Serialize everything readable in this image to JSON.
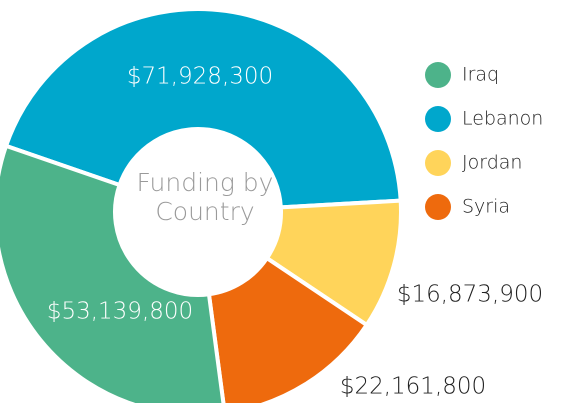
{
  "chart_data": {
    "type": "donut",
    "title": "Funding by Country",
    "categories": [
      "Iraq",
      "Lebanon",
      "Jordan",
      "Syria"
    ],
    "values": [
      53139800,
      71928300,
      16873900,
      22161800
    ],
    "value_labels": [
      "$53,139,800",
      "$71,928,300",
      "$16,873,900",
      "$22,161,800"
    ],
    "colors": [
      "#4db38a",
      "#00a7cc",
      "#ffd45a",
      "#ee6a0d"
    ],
    "legend": "right"
  }
}
